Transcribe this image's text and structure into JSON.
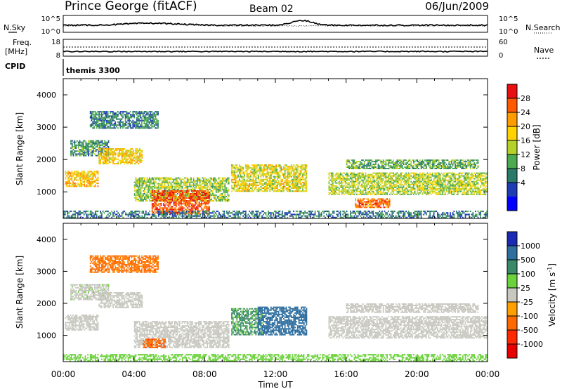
{
  "header": {
    "station": "Prince George (fitACF)",
    "beam": "Beam 02",
    "date": "06/Jun/2009"
  },
  "noise_panel": {
    "left_label": "N.Sky",
    "left_ticks": [
      "10^5",
      "10^0"
    ],
    "right_ticks": [
      "10^5",
      "10^0"
    ],
    "right_label": "N.Search"
  },
  "freq_panel": {
    "label_line1": "Freq.",
    "label_line2": "[MHz]",
    "left_ticks": [
      "18",
      "8"
    ],
    "right_ticks": [
      "60",
      "0"
    ],
    "right_label": "Nave"
  },
  "cpid_panel": {
    "label": "CPID",
    "program": "themis 3300"
  },
  "power_colorbar": {
    "label": "Power [dB]",
    "ticks": [
      "28",
      "24",
      "20",
      "16",
      "12",
      "8",
      "4"
    ],
    "colors": [
      "#e81010",
      "#ff5a00",
      "#ff9c00",
      "#ffd200",
      "#b4d228",
      "#4caa50",
      "#2a7a6a",
      "#1e3cb4",
      "#0000ff"
    ]
  },
  "velocity_colorbar": {
    "label_main": "Velocity [m s",
    "label_sup": "-1",
    "label_end": "]",
    "ticks": [
      "1000",
      "500",
      "100",
      "25",
      "-25",
      "-100",
      "-500",
      "-1000"
    ],
    "colors": [
      "#1a2ab4",
      "#2f6fa0",
      "#3a8a6a",
      "#6cd23c",
      "#c8c8c0",
      "#ffa000",
      "#ff6a00",
      "#ff2a00",
      "#e80000"
    ]
  },
  "axes": {
    "ylabel": "Slant Range [km]",
    "y_ticks": [
      "4000",
      "3000",
      "2000",
      "1000"
    ],
    "x_ticks": [
      "00:00",
      "04:00",
      "08:00",
      "12:00",
      "16:00",
      "20:00",
      "00:00"
    ],
    "xlabel": "Time UT"
  },
  "chart_data": [
    {
      "type": "heatmap",
      "title": "",
      "xlabel": "Time UT",
      "ylabel": "Slant Range [km]",
      "x_units": "hours UT",
      "xlim": [
        0,
        24
      ],
      "ylim": [
        180,
        4500
      ],
      "colorbar_label": "Power [dB]",
      "colorbar_range": [
        0,
        30
      ],
      "echo_regions": [
        {
          "t0": 0.1,
          "t1": 2.0,
          "r0": 1150,
          "r1": 1650,
          "value": 20
        },
        {
          "t0": 0.4,
          "t1": 2.6,
          "r0": 2100,
          "r1": 2600,
          "value": 9
        },
        {
          "t0": 2.0,
          "t1": 4.5,
          "r0": 1850,
          "r1": 2350,
          "value": 19
        },
        {
          "t0": 1.5,
          "t1": 5.4,
          "r0": 2950,
          "r1": 3500,
          "value": 8
        },
        {
          "t0": 4.0,
          "t1": 9.4,
          "r0": 700,
          "r1": 1450,
          "value": 14
        },
        {
          "t0": 5.0,
          "t1": 8.3,
          "r0": 300,
          "r1": 1050,
          "value": 27
        },
        {
          "t0": 0.0,
          "t1": 24.0,
          "r0": 180,
          "r1": 420,
          "value": 7
        },
        {
          "t0": 9.5,
          "t1": 13.8,
          "r0": 1000,
          "r1": 1850,
          "value": 17
        },
        {
          "t0": 15.0,
          "t1": 24.0,
          "r0": 900,
          "r1": 1600,
          "value": 15
        },
        {
          "t0": 16.0,
          "t1": 23.5,
          "r0": 1700,
          "r1": 2000,
          "value": 11
        },
        {
          "t0": 16.5,
          "t1": 18.5,
          "r0": 500,
          "r1": 800,
          "value": 25
        }
      ]
    },
    {
      "type": "heatmap",
      "title": "",
      "xlabel": "Time UT",
      "ylabel": "Slant Range [km]",
      "x_units": "hours UT",
      "xlim": [
        0,
        24
      ],
      "ylim": [
        180,
        4500
      ],
      "colorbar_label": "Velocity [m s-1]",
      "colorbar_ticks": [
        1000,
        500,
        100,
        25,
        -25,
        -100,
        -500,
        -1000
      ],
      "echo_regions": [
        {
          "t0": 0.1,
          "t1": 2.0,
          "r0": 1150,
          "r1": 1650,
          "value": 0
        },
        {
          "t0": 0.4,
          "t1": 2.6,
          "r0": 2100,
          "r1": 2600,
          "value": 10
        },
        {
          "t0": 2.0,
          "t1": 4.5,
          "r0": 1850,
          "r1": 2350,
          "value": 0
        },
        {
          "t0": 1.5,
          "t1": 5.4,
          "r0": 2950,
          "r1": 3500,
          "value": -200
        },
        {
          "t0": 4.0,
          "t1": 9.4,
          "r0": 600,
          "r1": 1450,
          "value": 0
        },
        {
          "t0": 4.5,
          "t1": 5.8,
          "r0": 600,
          "r1": 900,
          "value": -400
        },
        {
          "t0": 0.0,
          "t1": 24.0,
          "r0": 180,
          "r1": 420,
          "value": 60
        },
        {
          "t0": 9.5,
          "t1": 11.3,
          "r0": 1000,
          "r1": 1850,
          "value": 150
        },
        {
          "t0": 11.0,
          "t1": 13.8,
          "r0": 1000,
          "r1": 1900,
          "value": 800
        },
        {
          "t0": 15.0,
          "t1": 24.0,
          "r0": 900,
          "r1": 1600,
          "value": 0
        },
        {
          "t0": 16.0,
          "t1": 23.5,
          "r0": 1700,
          "r1": 2000,
          "value": 0
        }
      ]
    }
  ]
}
